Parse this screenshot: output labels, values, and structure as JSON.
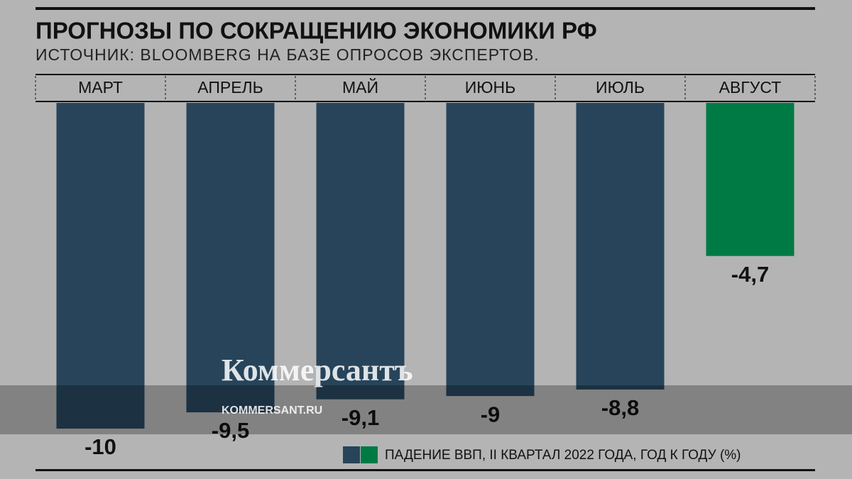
{
  "chart_data": {
    "type": "bar",
    "title": "ПРОГНОЗЫ ПО СОКРАЩЕНИЮ ЭКОНОМИКИ РФ",
    "subtitle": "ИСТОЧНИК: BLOOMBERG НА БАЗЕ ОПРОСОВ ЭКСПЕРТОВ.",
    "categories": [
      "МАРТ",
      "АПРЕЛЬ",
      "МАЙ",
      "ИЮНЬ",
      "ИЮЛЬ",
      "АВГУСТ"
    ],
    "values": [
      -10,
      -9.5,
      -9.1,
      -9,
      -8.8,
      -4.7
    ],
    "value_labels": [
      "-10",
      "-9,5",
      "-9,1",
      "-9",
      "-8,8",
      "-4,7"
    ],
    "colors": [
      "#27445a",
      "#27445a",
      "#27445a",
      "#27445a",
      "#27445a",
      "#007a45"
    ],
    "ylim": [
      -10,
      0
    ],
    "legend": "ПАДЕНИЕ ВВП, II КВАРТАЛ 2022 ГОДА, ГОД К ГОДУ (%)",
    "watermark": {
      "brand": "Коммерсантъ",
      "site": "KOMMERSANT.RU"
    }
  }
}
